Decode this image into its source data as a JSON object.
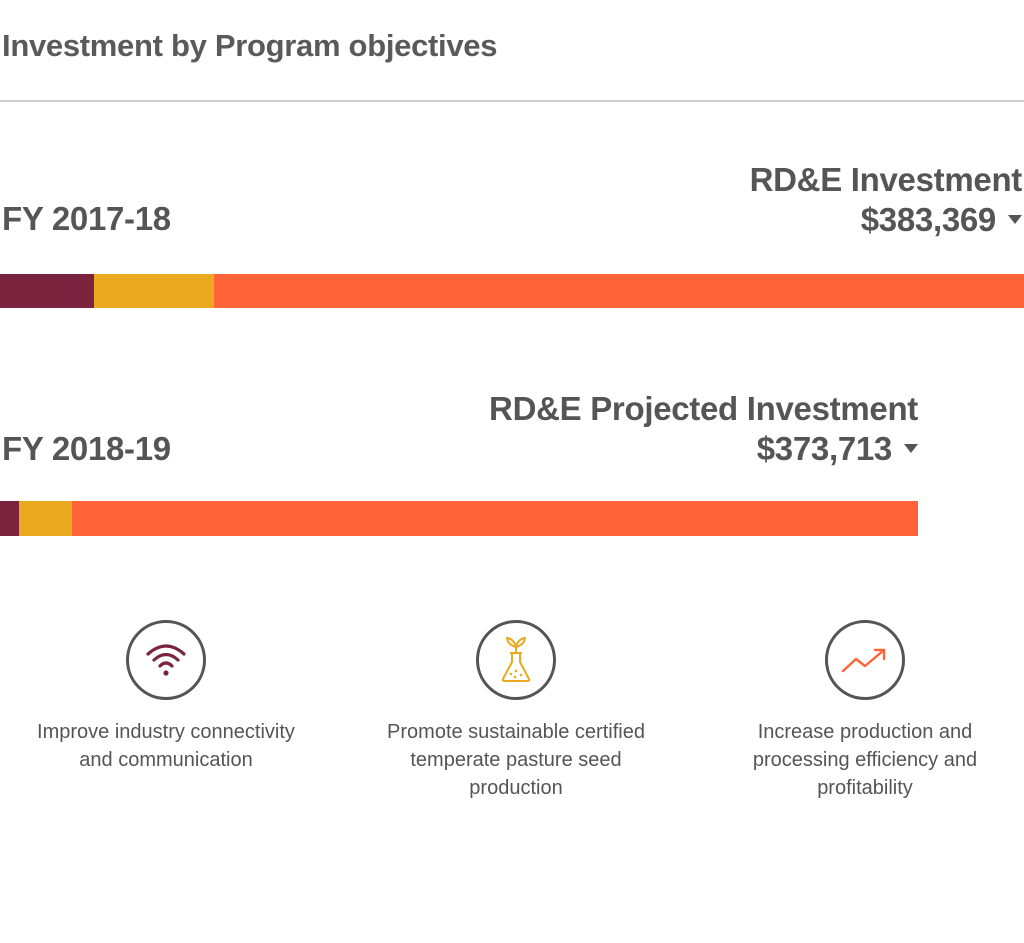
{
  "title": "Investment by Program objectives",
  "colors": {
    "connectivity": "#7a2440",
    "seed": "#eaa91e",
    "production": "#ff633a",
    "text": "#555555"
  },
  "rows": [
    {
      "fy": "FY 2017-18",
      "heading": "RD&E Investment",
      "amount": "$383,369"
    },
    {
      "fy": "FY 2018-19",
      "heading": "RD&E Projected Investment",
      "amount": "$373,713"
    }
  ],
  "objectives": [
    {
      "icon": "wifi-icon",
      "text_lines": [
        "Improve industry connectivity",
        "and communication"
      ]
    },
    {
      "icon": "seedling-flask-icon",
      "text_lines": [
        "Promote sustainable certified",
        "temperate pasture seed",
        "production"
      ]
    },
    {
      "icon": "trend-up-icon",
      "text_lines": [
        "Increase production and",
        "processing efficiency and",
        "profitability"
      ]
    }
  ],
  "chart_data": {
    "type": "bar",
    "orientation": "horizontal-stacked",
    "categories": [
      "FY 2017-18",
      "FY 2018-19"
    ],
    "totals": [
      383369,
      373713
    ],
    "series": [
      {
        "name": "Improve industry connectivity and communication",
        "color": "#7a2440",
        "values": [
          35100,
          7900
        ]
      },
      {
        "name": "Promote sustainable certified temperate pasture seed production",
        "color": "#eaa91e",
        "values": [
          45200,
          21600
        ]
      },
      {
        "name": "Increase production and processing efficiency and profitability",
        "color": "#ff633a",
        "values": [
          303069,
          344213
        ]
      }
    ]
  }
}
